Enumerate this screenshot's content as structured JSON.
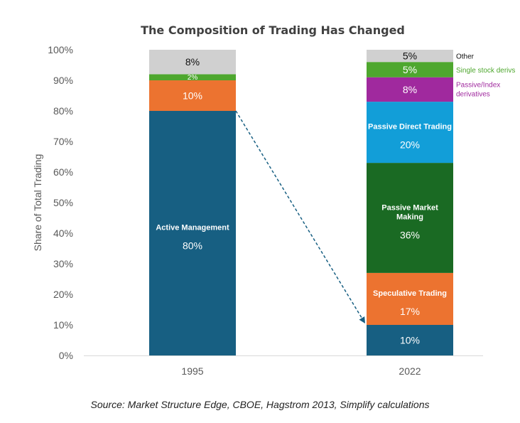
{
  "chart_data": {
    "type": "bar",
    "stacked": true,
    "title": "The Composition of Trading Has Changed",
    "xlabel": "",
    "ylabel": "Share of Total Trading",
    "ylim": [
      0,
      100
    ],
    "yticks": [
      "0%",
      "10%",
      "20%",
      "30%",
      "40%",
      "50%",
      "60%",
      "70%",
      "80%",
      "90%",
      "100%"
    ],
    "grid": false,
    "categories": [
      "1995",
      "2022"
    ],
    "bars": [
      {
        "category": "1995",
        "segments": [
          {
            "label": "Active Management",
            "value": 80,
            "value_label": "80%",
            "color": "#175F82"
          },
          {
            "label": "",
            "value": 10,
            "value_label": "10%",
            "color": "#EC7330"
          },
          {
            "label": "",
            "value": 2,
            "value_label": "2%",
            "color": "#4EA72E"
          },
          {
            "label": "",
            "value": 8,
            "value_label": "8%",
            "color": "#D0D0D0"
          }
        ]
      },
      {
        "category": "2022",
        "segments": [
          {
            "label": "",
            "value": 10,
            "value_label": "10%",
            "color": "#175F82"
          },
          {
            "label": "Speculative Trading",
            "value": 17,
            "value_label": "17%",
            "color": "#EC7330"
          },
          {
            "label": "Passive Market Making",
            "value": 36,
            "value_label": "36%",
            "color": "#1A6A23"
          },
          {
            "label": "Passive Direct Trading",
            "value": 20,
            "value_label": "20%",
            "color": "#129ED8"
          },
          {
            "label": "Passive/Index derivatives",
            "value": 8,
            "value_label": "8%",
            "color": "#A0299E",
            "side_label": true
          },
          {
            "label": "Single stock derivs",
            "value": 5,
            "value_label": "5%",
            "color": "#4EA72E",
            "side_label": true
          },
          {
            "label": "Other",
            "value": 5,
            "value_label": "5%",
            "color": "#D0D0D0",
            "side_label": true
          }
        ]
      }
    ],
    "annotation": "dashed arrow from top of 1995 Active Management to top of 2022 Active segment"
  },
  "source": "Source: Market Structure Edge, CBOE, Hagstrom 2013, Simplify calculations"
}
